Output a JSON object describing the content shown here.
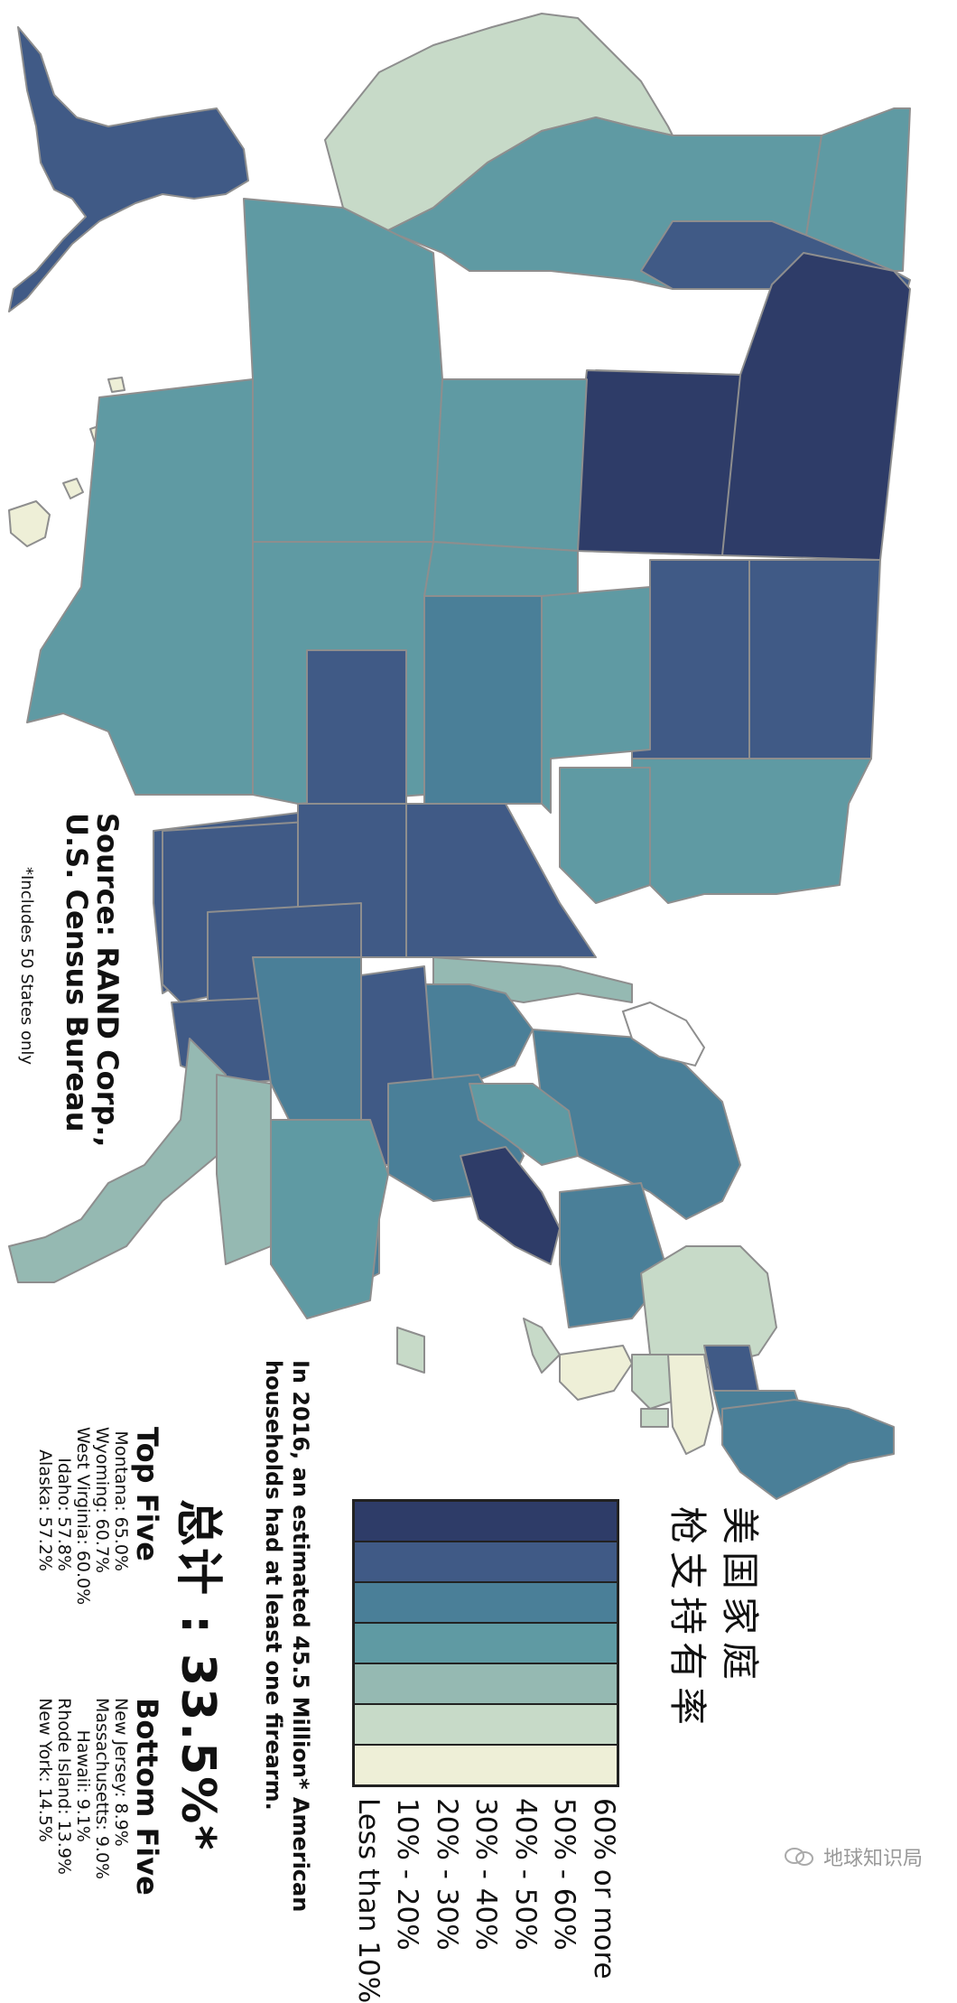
{
  "title_line1": "美国家庭",
  "title_line2": "枪支持有率",
  "legend": [
    {
      "label": "60% or more",
      "color": "#2e3c68"
    },
    {
      "label": "50% - 60%",
      "color": "#405a86"
    },
    {
      "label": "40% - 50%",
      "color": "#4a7f98"
    },
    {
      "label": "30% - 40%",
      "color": "#5f9aa3"
    },
    {
      "label": "20% - 30%",
      "color": "#95b9b2"
    },
    {
      "label": "10% - 20%",
      "color": "#c7dac8"
    },
    {
      "label": "Less than 10%",
      "color": "#eeefd7"
    }
  ],
  "note_line1": "In 2016, an estimated 45.5 Million* American",
  "note_line2": "households had at least one firearm.",
  "total": "总计 : 33.5%*",
  "top_five": {
    "heading": "Top Five",
    "items": [
      "Montana: 65.0%",
      "Wyoming: 60.7%",
      "West Virginia: 60.0%",
      "Idaho: 57.8%",
      "Alaska: 57.2%"
    ]
  },
  "bottom_five": {
    "heading": "Bottom Five",
    "items": [
      "New Jersey: 8.9%",
      "Massachusetts: 9.0%",
      "Hawaii: 9.1%",
      "Rhode Island: 13.9%",
      "New York: 14.5%"
    ]
  },
  "source_line1": "Source: RAND Corp.,",
  "source_line2": "U.S. Census Bureau",
  "footnote": "*Includes 50 States only",
  "watermark": "地球知识局",
  "watermark_icon": "wechat-icon"
}
